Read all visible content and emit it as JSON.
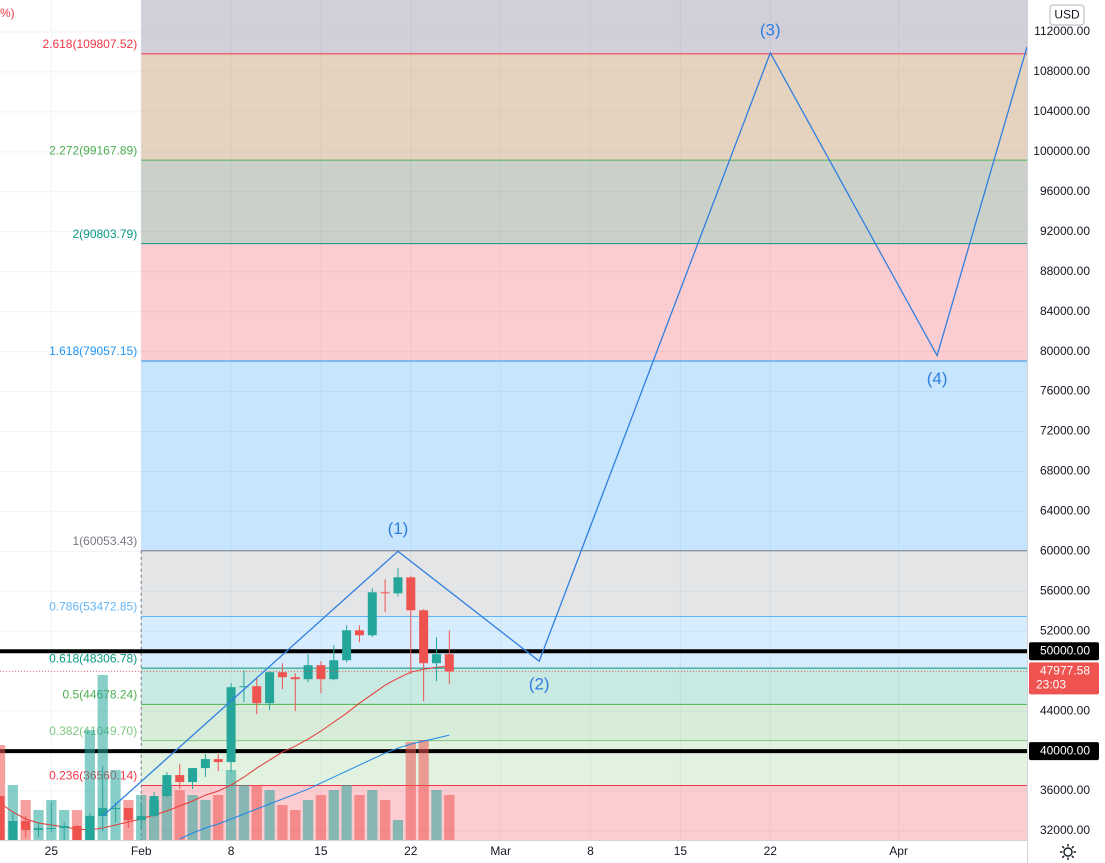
{
  "chart_data": {
    "type": "candlestick",
    "corner_label": "%)",
    "currency": "USD",
    "countdown": "23:03",
    "xlim": [
      "Jan 21",
      "Apr 11"
    ],
    "ylim": [
      31100,
      115200
    ],
    "vlim": [
      0,
      200
    ],
    "grid": true,
    "up_color": "#26a69a",
    "down_color": "#ef5350",
    "x": [
      "Jan 21",
      "Jan 22",
      "Jan 23",
      "Jan 24",
      "Jan 25",
      "Jan 26",
      "Jan 27",
      "Jan 28",
      "Jan 29",
      "Jan 30",
      "Jan 31",
      "Feb 1",
      "Feb 2",
      "Feb 3",
      "Feb 4",
      "Feb 5",
      "Feb 6",
      "Feb 7",
      "Feb 8",
      "Feb 9",
      "Feb 10",
      "Feb 11",
      "Feb 12",
      "Feb 13",
      "Feb 14",
      "Feb 15",
      "Feb 16",
      "Feb 17",
      "Feb 18",
      "Feb 19",
      "Feb 20",
      "Feb 21",
      "Feb 22",
      "Feb 23",
      "Feb 24",
      "Feb 25"
    ],
    "open": [
      35500,
      30800,
      33000,
      32100,
      32300,
      32300,
      32500,
      30400,
      33500,
      34300,
      34300,
      33100,
      33500,
      35500,
      37600,
      36900,
      38300,
      39200,
      38900,
      46400,
      46500,
      44800,
      47900,
      47400,
      47200,
      48600,
      47200,
      49100,
      52100,
      51600,
      55900,
      55800,
      57400,
      54100,
      48800,
      49700
    ],
    "high": [
      35600,
      33800,
      33500,
      32900,
      34900,
      32900,
      32600,
      33800,
      38500,
      34900,
      34300,
      34700,
      35900,
      37900,
      38700,
      38300,
      39700,
      39700,
      46800,
      48100,
      47300,
      48000,
      48800,
      47800,
      49700,
      49000,
      50600,
      52600,
      52600,
      56300,
      57200,
      58300,
      57500,
      54200,
      51400,
      52100
    ],
    "low": [
      30100,
      28800,
      31300,
      31400,
      31900,
      30800,
      29300,
      30000,
      32000,
      32900,
      32300,
      32300,
      33400,
      35400,
      36200,
      36200,
      37400,
      38000,
      37900,
      44900,
      43700,
      44100,
      46200,
      44000,
      46900,
      45800,
      47100,
      48900,
      50900,
      51400,
      53900,
      55500,
      47700,
      45000,
      47000,
      46700
    ],
    "close": [
      30800,
      33000,
      32100,
      32300,
      32300,
      32500,
      30400,
      33500,
      34300,
      34300,
      33100,
      33500,
      35500,
      37600,
      36900,
      38300,
      39200,
      38900,
      46400,
      46500,
      44800,
      47900,
      47400,
      47200,
      48600,
      47200,
      49100,
      52100,
      51600,
      55900,
      55800,
      57400,
      54100,
      48800,
      49700,
      47977.58
    ],
    "volume": [
      95,
      55,
      40,
      30,
      40,
      30,
      30,
      110,
      165,
      70,
      40,
      45,
      40,
      55,
      50,
      45,
      40,
      45,
      70,
      55,
      55,
      50,
      35,
      30,
      40,
      45,
      50,
      55,
      45,
      50,
      40,
      20,
      98,
      100,
      50,
      45
    ],
    "ma": [
      {
        "color": "#e53935",
        "values": [
          34800,
          33900,
          33200,
          32800,
          32600,
          32400,
          32200,
          32100,
          32300,
          32600,
          32900,
          33200,
          33600,
          34000,
          34500,
          35000,
          35600,
          36000,
          36600,
          37400,
          38300,
          39100,
          39900,
          40500,
          41200,
          42000,
          42900,
          43800,
          44800,
          45700,
          46600,
          47300,
          47900,
          48200,
          48400,
          48500
        ]
      },
      {
        "color": "#1e88e5",
        "values": [
          null,
          null,
          null,
          null,
          null,
          null,
          null,
          null,
          null,
          null,
          null,
          null,
          null,
          null,
          31200,
          31800,
          32300,
          32700,
          33200,
          33700,
          34200,
          34700,
          35200,
          35700,
          36200,
          36800,
          37400,
          38000,
          38600,
          39200,
          39800,
          40300,
          40700,
          41000,
          41300,
          41600
        ]
      }
    ],
    "fib_start": "Feb 1",
    "fib_top_fill": "rgba(120,110,140,0.33)",
    "fib_levels": [
      {
        "value": 36560.14,
        "label": "0.236(36560.14)",
        "color": "#f23645",
        "fill": "rgba(242,54,69,0.25)"
      },
      {
        "value": 41049.7,
        "label": "0.382(41049.70)",
        "color": "#81c784",
        "fill": "rgba(76,175,80,0.17)"
      },
      {
        "value": 44678.24,
        "label": "0.5(44678.24)",
        "color": "#4caf50",
        "fill": "rgba(76,175,80,0.22)"
      },
      {
        "value": 48306.78,
        "label": "0.618(48306.78)",
        "color": "#089981",
        "fill": "rgba(8,153,129,0.22)"
      },
      {
        "value": 53472.85,
        "label": "0.786(53472.85)",
        "color": "#64b5f6",
        "fill": "rgba(33,150,243,0.18)"
      },
      {
        "value": 60053.43,
        "label": "1(60053.43)",
        "color": "#787b86",
        "fill": "rgba(120,123,134,0.2)"
      },
      {
        "value": 79057.15,
        "label": "1.618(79057.15)",
        "color": "#2196f3",
        "fill": "rgba(33,150,243,0.25)"
      },
      {
        "value": 90803.79,
        "label": "2(90803.79)",
        "color": "#089981",
        "fill": "rgba(242,54,69,0.25)"
      },
      {
        "value": 99167.89,
        "label": "2.272(99167.89)",
        "color": "#4caf50",
        "fill": "rgba(70,90,60,0.28)"
      },
      {
        "value": 109807.52,
        "label": "2.618(109807.52)",
        "color": "#f23645",
        "fill": "rgba(180,120,60,0.33)"
      }
    ],
    "hlines": [
      {
        "value": 50000,
        "label": "50000.00"
      },
      {
        "value": 40000,
        "label": "40000.00"
      }
    ],
    "waves": {
      "color": "#2f7fe0",
      "x": [
        "Jan 29",
        "Feb 21",
        "Mar 4",
        "Mar 22",
        "Apr 4",
        "Apr 11"
      ],
      "values": [
        33500,
        60000,
        49000,
        109900,
        79600,
        110500
      ],
      "labels": [
        null,
        "(1)",
        "(2)",
        "(3)",
        "(4)",
        null
      ]
    },
    "yticks": [
      {
        "value": 32000,
        "label": "32000.00"
      },
      {
        "value": 36000,
        "label": "36000.00"
      },
      {
        "value": 40000,
        "label": "40000.00"
      },
      {
        "value": 44000,
        "label": "44000.00"
      },
      {
        "value": 48000,
        "label": "48000.00"
      },
      {
        "value": 52000,
        "label": "52000.00"
      },
      {
        "value": 56000,
        "label": "56000.00"
      },
      {
        "value": 60000,
        "label": "60000.00"
      },
      {
        "value": 64000,
        "label": "64000.00"
      },
      {
        "value": 68000,
        "label": "68000.00"
      },
      {
        "value": 72000,
        "label": "72000.00"
      },
      {
        "value": 76000,
        "label": "76000.00"
      },
      {
        "value": 80000,
        "label": "80000.00"
      },
      {
        "value": 84000,
        "label": "84000.00"
      },
      {
        "value": 88000,
        "label": "88000.00"
      },
      {
        "value": 92000,
        "label": "92000.00"
      },
      {
        "value": 96000,
        "label": "96000.00"
      },
      {
        "value": 100000,
        "label": "100000.00"
      },
      {
        "value": 104000,
        "label": "104000.00"
      },
      {
        "value": 108000,
        "label": "108000.00"
      },
      {
        "value": 112000,
        "label": "112000.00"
      }
    ],
    "xticks": [
      {
        "value": "Jan 25",
        "label": "25"
      },
      {
        "value": "Feb 1",
        "label": "Feb"
      },
      {
        "value": "Feb 8",
        "label": "8"
      },
      {
        "value": "Feb 15",
        "label": "15"
      },
      {
        "value": "Feb 22",
        "label": "22"
      },
      {
        "value": "Mar 1",
        "label": "Mar"
      },
      {
        "value": "Mar 8",
        "label": "8"
      },
      {
        "value": "Mar 15",
        "label": "15"
      },
      {
        "value": "Mar 22",
        "label": "22"
      },
      {
        "value": "Apr 1",
        "label": "Apr"
      }
    ]
  }
}
